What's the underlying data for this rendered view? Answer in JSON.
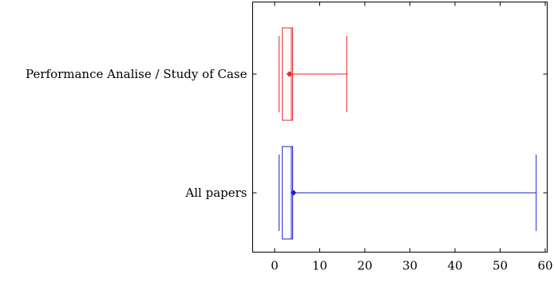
{
  "chart_data": {
    "type": "boxplot",
    "orientation": "horizontal",
    "title": "",
    "xlabel": "",
    "ylabel": "",
    "xlim": [
      -5,
      62
    ],
    "x_ticks": [
      0,
      10,
      20,
      30,
      40,
      50,
      60
    ],
    "x_tick_labels": [
      "0",
      "10",
      "20",
      "30",
      "40",
      "50",
      "60"
    ],
    "grid": false,
    "categories": [
      "Performance Analise / Study of Case",
      "All papers"
    ],
    "series": [
      {
        "category": "Performance Analise / Study of Case",
        "color": "#e8262b",
        "lower_whisker": 1,
        "q1": 1,
        "median": 3,
        "q3": 4,
        "upper_whisker": 16,
        "mean": 3.3
      },
      {
        "category": "All papers",
        "color": "#1f1fd6",
        "lower_whisker": 1,
        "q1": 1,
        "median": 3,
        "q3": 4,
        "upper_whisker": 58,
        "mean": 4.2
      }
    ]
  }
}
